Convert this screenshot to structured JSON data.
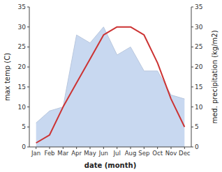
{
  "chart_data": {
    "type": "line",
    "xlabel": "date (month)",
    "ylabel": "max temp (C)",
    "y2label": "med. precipitation (kg/m2)",
    "categories": [
      "Jan",
      "Feb",
      "Mar",
      "Apr",
      "May",
      "Jun",
      "Jul",
      "Aug",
      "Sep",
      "Oct",
      "Nov",
      "Dec"
    ],
    "series": [
      {
        "type": "area",
        "color": "#c8d8f0",
        "values": [
          6,
          9,
          10,
          28,
          26,
          30,
          23,
          25,
          19,
          19,
          13,
          12
        ]
      },
      {
        "type": "line",
        "color": "#cc3333",
        "values": [
          1,
          3,
          10,
          16,
          22,
          28,
          30,
          30,
          28,
          21,
          12,
          5
        ]
      }
    ],
    "ylim": [
      0,
      35
    ],
    "yticks": [
      0,
      5,
      10,
      15,
      20,
      25,
      30,
      35
    ],
    "y2lim": [
      0,
      35
    ],
    "y2ticks": [
      0,
      5,
      10,
      15,
      20,
      25,
      30,
      35
    ],
    "grid": false
  }
}
